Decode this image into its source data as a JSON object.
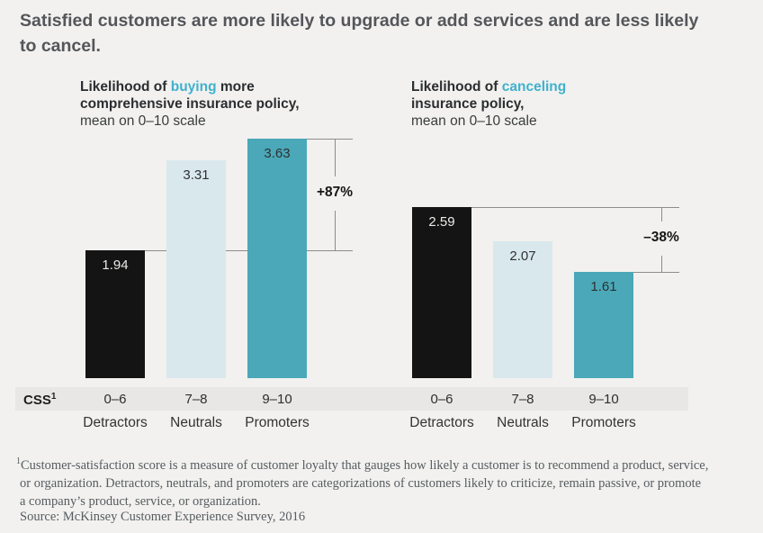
{
  "title": {
    "line1": "Satisfied customers are more likely to upgrade or add services and are less likely",
    "line2": "to cancel."
  },
  "colors": {
    "background": "#f2f1ef",
    "band": "#e8e7e5",
    "accent_text": "#3fb1ce",
    "bar_black": "#141414",
    "bar_light": "#d9e8ed",
    "bar_teal": "#4aa8b8",
    "value_on_dark": "#ebebe9",
    "value_on_light": "#2f3133",
    "annotation_line": "#8c8c8c"
  },
  "chart_data": [
    {
      "type": "bar",
      "header": {
        "prefix": "Likelihood of ",
        "highlight": "buying",
        "suffix": " more",
        "line2": "comprehensive insurance policy,",
        "subtitle": "mean on 0–10 scale"
      },
      "categories": [
        "0–6",
        "7–8",
        "9–10"
      ],
      "category_names": [
        "Detractors",
        "Neutrals",
        "Promoters"
      ],
      "values": [
        1.94,
        3.31,
        3.63
      ],
      "bar_colors": [
        "#141414",
        "#d9e8ed",
        "#4aa8b8"
      ],
      "annotation": {
        "label": "+87%",
        "from_bar": 0,
        "to_bar": 2
      },
      "ylim": [
        0,
        4
      ],
      "legend": "none",
      "grid": false
    },
    {
      "type": "bar",
      "header": {
        "prefix": "Likelihood of ",
        "highlight": "canceling",
        "suffix": "",
        "line2": "insurance policy,",
        "subtitle": "mean on 0–10 scale"
      },
      "categories": [
        "0–6",
        "7–8",
        "9–10"
      ],
      "category_names": [
        "Detractors",
        "Neutrals",
        "Promoters"
      ],
      "values": [
        2.59,
        2.07,
        1.61
      ],
      "bar_colors": [
        "#141414",
        "#d9e8ed",
        "#4aa8b8"
      ],
      "annotation": {
        "label": "–38%",
        "from_bar": 0,
        "to_bar": 2
      },
      "ylim": [
        0,
        4
      ],
      "legend": "none",
      "grid": false
    }
  ],
  "css_row": {
    "label": "CSS",
    "sup": "1"
  },
  "footnote": {
    "sup": "1",
    "lines": [
      "Customer-satisfaction score is a measure of customer loyalty that gauges how likely a customer is to recommend a product, service,",
      "or organization. Detractors, neutrals, and promoters are categorizations of customers likely to criticize, remain passive, or promote",
      "a company’s product, service, or organization."
    ]
  },
  "source": "Source: McKinsey Customer Experience Survey, 2016"
}
